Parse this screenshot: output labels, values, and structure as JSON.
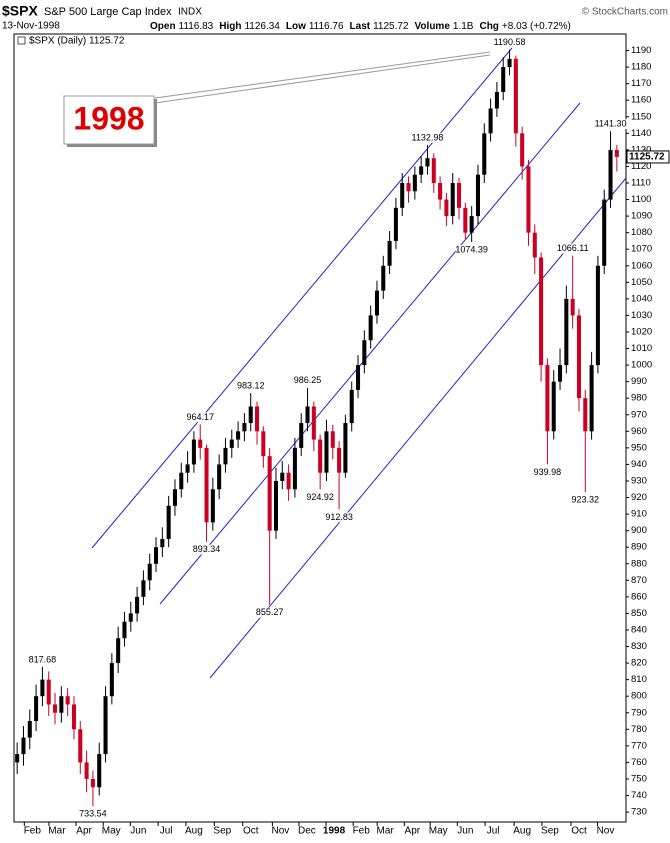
{
  "chart_data": {
    "type": "candlestick",
    "header": {
      "symbol": "$SPX",
      "name": "S&P 500 Large Cap Index",
      "exchange": "INDX",
      "date": "13-Nov-1998",
      "quotes": [
        {
          "label": "Open",
          "value": "1116.83"
        },
        {
          "label": "High",
          "value": "1126.34"
        },
        {
          "label": "Low",
          "value": "1116.76"
        },
        {
          "label": "Last",
          "value": "1125.72"
        },
        {
          "label": "Volume",
          "value": "1.1B"
        },
        {
          "label": "Chg",
          "value": "+8.03 (+0.72%)"
        }
      ],
      "source": "© StockCharts.com"
    },
    "legend": "$SPX (Daily) 1125.72",
    "annotation": "1998",
    "up_color": "#000000",
    "down_color": "#cc0022",
    "open": [
      760,
      765,
      775,
      785,
      800,
      810,
      795,
      790,
      800,
      795,
      780,
      760,
      750,
      745,
      765,
      800,
      820,
      835,
      845,
      850,
      860,
      870,
      880,
      890,
      895,
      915,
      925,
      935,
      940,
      955,
      950,
      905,
      925,
      940,
      950,
      955,
      960,
      965,
      975,
      960,
      945,
      900,
      930,
      935,
      925,
      950,
      965,
      975,
      955,
      935,
      960,
      950,
      935,
      965,
      985,
      1000,
      1015,
      1030,
      1045,
      1060,
      1075,
      1095,
      1110,
      1105,
      1115,
      1120,
      1125,
      1110,
      1100,
      1090,
      1110,
      1095,
      1080,
      1090,
      1115,
      1140,
      1155,
      1165,
      1180,
      1185,
      1140,
      1120,
      1080,
      1065,
      1000,
      960,
      990,
      1000,
      1040,
      1030,
      980,
      960,
      1000,
      1060,
      1100,
      1130
    ],
    "high": [
      772,
      782,
      792,
      807,
      817.68,
      815,
      802,
      806,
      805,
      800,
      785,
      767,
      755,
      772,
      806,
      826,
      842,
      851,
      857,
      866,
      876,
      886,
      896,
      902,
      921,
      931,
      941,
      948,
      960,
      964.17,
      952,
      932,
      946,
      956,
      961,
      966,
      971,
      983.12,
      978,
      963,
      950,
      938,
      942,
      940,
      956,
      971,
      986.25,
      978,
      958,
      967,
      964,
      954,
      970,
      990,
      1006,
      1021,
      1036,
      1051,
      1066,
      1081,
      1101,
      1116,
      1114,
      1120,
      1126,
      1132.98,
      1128,
      1114,
      1104,
      1116,
      1113,
      1098,
      1096,
      1121,
      1146,
      1161,
      1171,
      1186,
      1190.58,
      1187,
      1144,
      1124,
      1085,
      1068,
      1004,
      997,
      1010,
      1048,
      1066.11,
      1034,
      985,
      1008,
      1066,
      1106,
      1141.3,
      1133
    ],
    "low": [
      753,
      758,
      768,
      779,
      794,
      788,
      783,
      784,
      788,
      774,
      753,
      742,
      733.54,
      740,
      760,
      795,
      814,
      830,
      839,
      845,
      855,
      864,
      875,
      884,
      890,
      909,
      920,
      929,
      935,
      943,
      893.34,
      900,
      919,
      935,
      944,
      950,
      954,
      960,
      952,
      938,
      855.27,
      895,
      925,
      918,
      920,
      945,
      960,
      948,
      924.92,
      930,
      943,
      912.83,
      932,
      960,
      980,
      995,
      1010,
      1025,
      1040,
      1055,
      1070,
      1090,
      1098,
      1100,
      1110,
      1115,
      1104,
      1094,
      1084,
      1085,
      1088,
      1076,
      1074.39,
      1085,
      1110,
      1135,
      1150,
      1160,
      1175,
      1132,
      1112,
      1072,
      1055,
      990,
      939.98,
      955,
      985,
      995,
      1022,
      972,
      923.32,
      955,
      995,
      1055,
      1095,
      1117
    ],
    "close": [
      765,
      775,
      785,
      800,
      810,
      795,
      790,
      800,
      795,
      780,
      760,
      750,
      745,
      765,
      800,
      820,
      835,
      845,
      850,
      860,
      870,
      880,
      890,
      895,
      915,
      925,
      935,
      940,
      955,
      950,
      905,
      925,
      940,
      950,
      955,
      960,
      965,
      975,
      960,
      945,
      900,
      930,
      935,
      925,
      950,
      965,
      975,
      955,
      935,
      960,
      950,
      935,
      965,
      985,
      1000,
      1015,
      1030,
      1045,
      1060,
      1075,
      1095,
      1110,
      1105,
      1115,
      1120,
      1125,
      1110,
      1100,
      1090,
      1110,
      1095,
      1080,
      1090,
      1115,
      1140,
      1155,
      1165,
      1180,
      1185,
      1140,
      1120,
      1080,
      1065,
      1000,
      960,
      990,
      1000,
      1040,
      1030,
      980,
      960,
      1000,
      1060,
      1100,
      1130,
      1125.72
    ],
    "high_labels": {
      "4": "817.68",
      "29": "964.17",
      "37": "983.12",
      "46": "986.25",
      "65": "1132.98",
      "78": "1190.58",
      "88": "1066.11",
      "94": "1141.30"
    },
    "low_labels": {
      "12": "733.54",
      "30": "893.34",
      "40": "855.27",
      "48": "924.92",
      "51": "912.83",
      "72": "1074.39",
      "84": "939.98",
      "90": "923.32"
    },
    "xlim": [
      -0.5,
      95.5
    ],
    "xticks": [
      {
        "value": 2.4,
        "label": "Feb"
      },
      {
        "value": 6.3,
        "label": "Mar"
      },
      {
        "value": 10.6,
        "label": "Apr"
      },
      {
        "value": 14.9,
        "label": "May"
      },
      {
        "value": 19.2,
        "label": "Jun"
      },
      {
        "value": 23.6,
        "label": "Jul"
      },
      {
        "value": 28,
        "label": "Aug"
      },
      {
        "value": 32.5,
        "label": "Sep"
      },
      {
        "value": 37,
        "label": "Oct"
      },
      {
        "value": 41.7,
        "label": "Nov"
      },
      {
        "value": 45.9,
        "label": "Dec"
      },
      {
        "value": 50.2,
        "label": "1998",
        "bold": true
      },
      {
        "value": 54.5,
        "label": "Feb"
      },
      {
        "value": 58.3,
        "label": "Mar"
      },
      {
        "value": 62.6,
        "label": "Apr"
      },
      {
        "value": 66.7,
        "label": "May"
      },
      {
        "value": 71,
        "label": "Jun"
      },
      {
        "value": 75.4,
        "label": "Jul"
      },
      {
        "value": 80,
        "label": "Aug"
      },
      {
        "value": 84.4,
        "label": "Sep"
      },
      {
        "value": 89,
        "label": "Oct"
      },
      {
        "value": 93.2,
        "label": "Nov"
      }
    ],
    "ylim": [
      724,
      1200
    ],
    "yticks": [
      730,
      740,
      750,
      760,
      770,
      780,
      790,
      800,
      810,
      820,
      830,
      840,
      850,
      860,
      870,
      880,
      890,
      900,
      910,
      920,
      930,
      940,
      950,
      960,
      970,
      980,
      990,
      1000,
      1010,
      1020,
      1030,
      1040,
      1050,
      1060,
      1070,
      1080,
      1090,
      1100,
      1110,
      1120,
      1130,
      1140,
      1150,
      1160,
      1170,
      1180,
      1190
    ],
    "grid": false
  }
}
